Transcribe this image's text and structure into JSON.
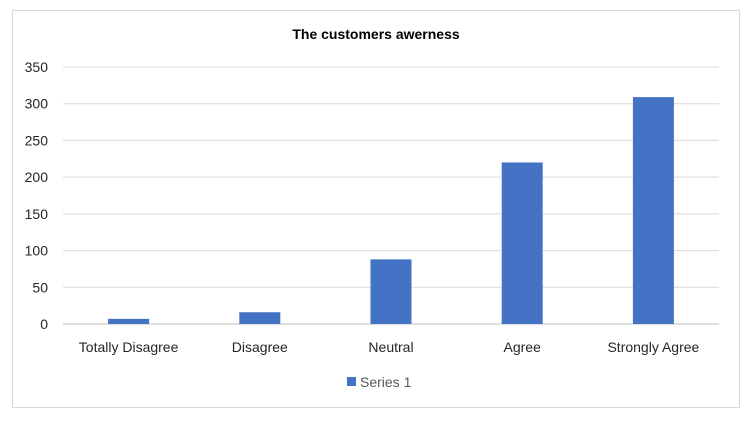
{
  "chart_data": {
    "type": "bar",
    "title": "The customers awerness",
    "xlabel": "",
    "ylabel": "",
    "categories": [
      "Totally Disagree",
      "Disagree",
      "Neutral",
      "Agree",
      "Strongly Agree"
    ],
    "series": [
      {
        "name": "Series 1",
        "values": [
          7,
          16,
          88,
          220,
          309
        ],
        "color": "#4472c4"
      }
    ],
    "ylim": [
      0,
      350
    ],
    "yticks": [
      0,
      50,
      100,
      150,
      200,
      250,
      300,
      350
    ],
    "grid": true,
    "legend_position": "bottom"
  }
}
